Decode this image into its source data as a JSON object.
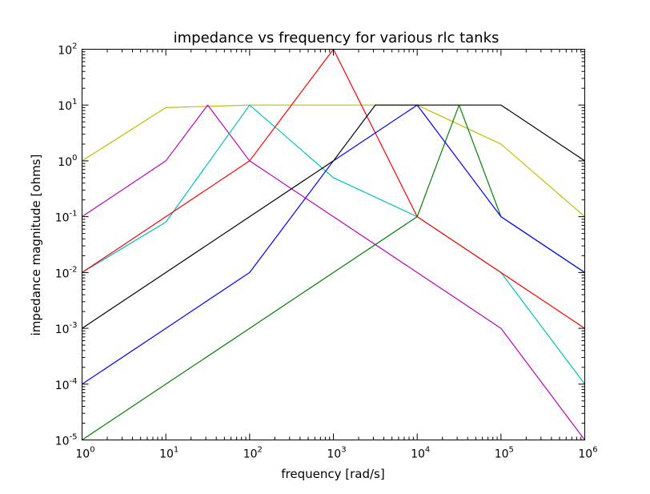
{
  "chart_data": {
    "type": "line",
    "title": "impedance vs frequency for various rlc tanks",
    "xlabel": "frequency [rad/s]",
    "ylabel": "impedance magnitude [ohms]",
    "xscale": "log",
    "yscale": "log",
    "xlim": [
      1,
      1000000
    ],
    "ylim": [
      1e-05,
      100
    ],
    "grid": false,
    "x_tick_labels": [
      {
        "base": "10",
        "exp": "0",
        "value": 1
      },
      {
        "base": "10",
        "exp": "1",
        "value": 10
      },
      {
        "base": "10",
        "exp": "2",
        "value": 100
      },
      {
        "base": "10",
        "exp": "3",
        "value": 1000
      },
      {
        "base": "10",
        "exp": "4",
        "value": 10000
      },
      {
        "base": "10",
        "exp": "5",
        "value": 100000
      },
      {
        "base": "10",
        "exp": "6",
        "value": 1000000
      }
    ],
    "y_tick_labels": [
      {
        "base": "10",
        "exp": "-5",
        "value": 1e-05
      },
      {
        "base": "10",
        "exp": "-4",
        "value": 0.0001
      },
      {
        "base": "10",
        "exp": "-3",
        "value": 0.001
      },
      {
        "base": "10",
        "exp": "-2",
        "value": 0.01
      },
      {
        "base": "10",
        "exp": "-1",
        "value": 0.1
      },
      {
        "base": "10",
        "exp": "0",
        "value": 1
      },
      {
        "base": "10",
        "exp": "1",
        "value": 10
      },
      {
        "base": "10",
        "exp": "2",
        "value": 100
      }
    ],
    "series": [
      {
        "color": "#bfbf00",
        "x": [
          1,
          10,
          100,
          1000,
          10000,
          100000,
          1000000
        ],
        "y": [
          1.0,
          9.0,
          10.0,
          10.0,
          10.0,
          2.0,
          0.1
        ]
      },
      {
        "color": "#bf00bf",
        "x": [
          1,
          10,
          31.6,
          100,
          1000,
          10000,
          100000,
          1000000
        ],
        "y": [
          0.1,
          1.0,
          10.0,
          1.0,
          0.1,
          0.01,
          0.001,
          1e-05
        ]
      },
      {
        "color": "#00bfbf",
        "x": [
          1,
          10,
          100,
          1000,
          10000,
          100000,
          1000000
        ],
        "y": [
          0.01,
          0.08,
          10.0,
          0.5,
          0.1,
          0.01,
          0.0001
        ]
      },
      {
        "color": "#ff0000",
        "x": [
          1,
          10,
          100,
          316,
          1000,
          10000,
          100000,
          1000000
        ],
        "y": [
          0.01,
          0.1,
          1.0,
          10.0,
          100.0,
          0.1,
          0.01,
          0.001
        ]
      },
      {
        "color": "#008000",
        "x": [
          1,
          10,
          100,
          1000,
          10000,
          31600,
          100000,
          1000000
        ],
        "y": [
          1e-05,
          0.0001,
          0.001,
          0.01,
          0.1,
          10.0,
          0.1,
          0.01
        ]
      },
      {
        "color": "#0000ff",
        "x": [
          1,
          10,
          100,
          1000,
          10000,
          100000,
          1000000
        ],
        "y": [
          0.0001,
          0.001,
          0.01,
          1.0,
          10.0,
          0.1,
          0.01
        ]
      },
      {
        "color": "#000000",
        "x": [
          1,
          10,
          100,
          1000,
          3162,
          10000,
          100000,
          1000000
        ],
        "y": [
          0.001,
          0.01,
          0.1,
          1.0,
          10.0,
          10.0,
          10.0,
          1.0
        ]
      }
    ]
  }
}
